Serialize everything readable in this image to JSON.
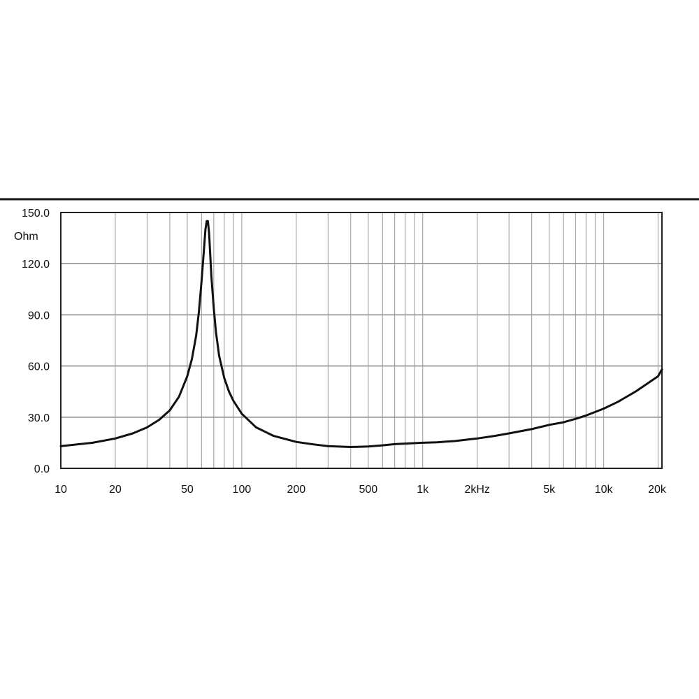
{
  "chart_data": {
    "type": "line",
    "xscale": "log",
    "xlim": [
      10,
      21000
    ],
    "ylim": [
      0,
      150
    ],
    "grid": true,
    "ylabel_unit": "Ohm",
    "yticks": [
      {
        "value": 0,
        "label": "0.0"
      },
      {
        "value": 30,
        "label": "30.0"
      },
      {
        "value": 60,
        "label": "60.0"
      },
      {
        "value": 90,
        "label": "90.0"
      },
      {
        "value": 120,
        "label": "120.0"
      },
      {
        "value": 150,
        "label": "150.0"
      }
    ],
    "xticks": [
      {
        "value": 10,
        "label": "10"
      },
      {
        "value": 20,
        "label": "20"
      },
      {
        "value": 50,
        "label": "50"
      },
      {
        "value": 100,
        "label": "100"
      },
      {
        "value": 200,
        "label": "200"
      },
      {
        "value": 500,
        "label": "500"
      },
      {
        "value": 1000,
        "label": "1k"
      },
      {
        "value": 2000,
        "label": "2kHz"
      },
      {
        "value": 5000,
        "label": "5k"
      },
      {
        "value": 10000,
        "label": "10k"
      },
      {
        "value": 20000,
        "label": "20k"
      }
    ],
    "series": [
      {
        "x": [
          10,
          15,
          20,
          25,
          30,
          35,
          40,
          45,
          50,
          53,
          56,
          58,
          60,
          62,
          63,
          64,
          65,
          66,
          67,
          68,
          70,
          72,
          75,
          80,
          85,
          90,
          100,
          120,
          150,
          200,
          250,
          300,
          400,
          500,
          600,
          700,
          800,
          1000,
          1200,
          1500,
          2000,
          2500,
          3000,
          4000,
          5000,
          6000,
          7000,
          8000,
          10000,
          12000,
          15000,
          20000,
          21000
        ],
        "y": [
          13,
          15,
          17.5,
          20.5,
          24,
          28.5,
          34,
          42,
          54,
          64,
          78,
          92,
          110,
          130,
          140,
          145,
          145,
          138,
          125,
          112,
          94,
          80,
          66,
          53,
          45,
          39.5,
          32,
          24,
          19,
          15.5,
          14,
          13,
          12.5,
          12.8,
          13.5,
          14.2,
          14.5,
          15,
          15.3,
          16,
          17.5,
          19,
          20.5,
          23,
          25.5,
          27,
          29,
          31,
          35,
          39,
          45,
          54,
          58
        ]
      }
    ]
  }
}
